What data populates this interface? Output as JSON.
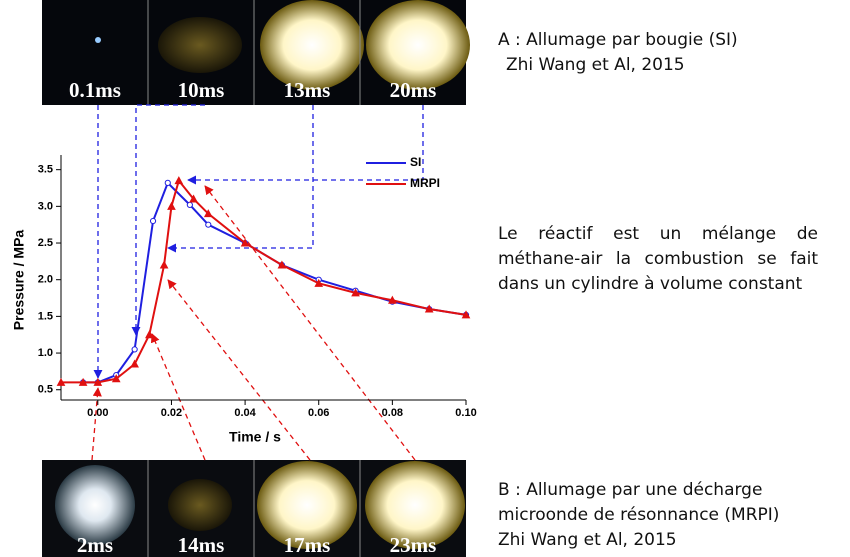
{
  "chart_data": {
    "type": "line",
    "xlabel": "Time / s",
    "ylabel": "Pressure / MPa",
    "xlim": [
      -0.01,
      0.1
    ],
    "ylim": [
      0.36,
      3.7
    ],
    "xticks": [
      {
        "value": 0,
        "label": "0.00"
      },
      0.02,
      0.04,
      0.06,
      0.08,
      {
        "value": 0.1,
        "label": "0.10"
      }
    ],
    "yticks": [
      0.5,
      {
        "value": 1,
        "label": "1.0"
      },
      1.5,
      {
        "value": 2,
        "label": "2.0"
      },
      2.5,
      {
        "value": 3,
        "label": "3.0"
      },
      3.5
    ],
    "legend": "upper right",
    "series": [
      {
        "name": "SI",
        "color": "#1f1fe0",
        "marker": "circle",
        "x": [
          -0.004,
          0,
          0.005,
          0.01,
          0.015,
          0.019,
          0.025,
          0.03,
          0.04,
          0.05,
          0.06,
          0.07,
          0.08,
          0.09,
          0.1
        ],
        "values": [
          0.6,
          0.6,
          0.7,
          1.05,
          2.8,
          3.32,
          3.02,
          2.75,
          2.5,
          2.2,
          2.0,
          1.85,
          1.7,
          1.6,
          1.52
        ]
      },
      {
        "name": "MRPI",
        "color": "#e01010",
        "marker": "triangle",
        "x": [
          -0.01,
          -0.004,
          0,
          0.005,
          0.01,
          0.014,
          0.018,
          0.02,
          0.022,
          0.026,
          0.03,
          0.04,
          0.05,
          0.06,
          0.07,
          0.08,
          0.09,
          0.1
        ],
        "values": [
          0.6,
          0.6,
          0.6,
          0.65,
          0.85,
          1.25,
          2.2,
          3.0,
          3.35,
          3.1,
          2.9,
          2.5,
          2.2,
          1.95,
          1.82,
          1.72,
          1.6,
          1.52
        ]
      }
    ]
  },
  "top_images": [
    "0.1ms",
    "10ms",
    "13ms",
    "20ms"
  ],
  "bottom_images": [
    "2ms",
    "14ms",
    "17ms",
    "23ms"
  ],
  "notes": {
    "a_title": "A : Allumage par bougie (SI)",
    "a_ref": "Zhi Wang et Al, 2015",
    "description": "Le réactif est un mélange de méthane-air la combustion se fait dans un cylindre à volume constant",
    "b_title": "B   : Allumage par une décharge microonde de résonnance (MRPI)",
    "b_ref": "Zhi Wang et Al, 2015"
  }
}
